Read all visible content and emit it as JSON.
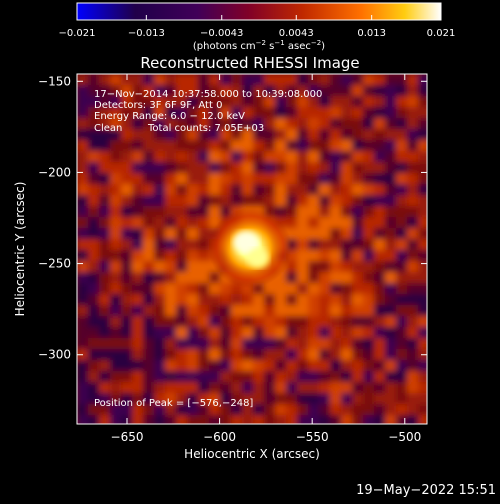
{
  "chart_data": {
    "type": "heatmap",
    "title": "Reconstructed RHESSI Image",
    "xlabel": "Heliocentric X (arcsec)",
    "ylabel": "Heliocentric Y (arcsec)",
    "xlim": [
      -677,
      -488
    ],
    "ylim": [
      -338,
      -146
    ],
    "x_ticks": [
      -650,
      -600,
      -550,
      -500
    ],
    "x_tick_labels": [
      "−650",
      "−600",
      "−550",
      "−500"
    ],
    "y_ticks": [
      -150,
      -200,
      -250,
      -300
    ],
    "y_tick_labels": [
      "−150",
      "−200",
      "−250",
      "−300"
    ],
    "colorbar": {
      "range": [
        -0.021,
        0.021
      ],
      "ticks": [
        -0.021,
        -0.013,
        -0.0043,
        0.0043,
        0.013,
        0.021
      ],
      "tick_labels": [
        "−0.021",
        "−0.013",
        "−0.0043",
        "0.0043",
        "0.013",
        "0.021"
      ],
      "units_text": "(photons cm",
      "units_sup1": "−2",
      "units_mid": " s",
      "units_sup2": "−1",
      "units_tail": " asec",
      "units_sup3": "−2",
      "units_end": ")",
      "colors": [
        "#0000ff",
        "#1a0033",
        "#3a0050",
        "#7a0020",
        "#c02000",
        "#ff6000",
        "#ffc000",
        "#ffffff"
      ]
    },
    "peak": {
      "x": -576,
      "y": -248,
      "value": 0.021
    },
    "annotations": {
      "time_range": "17−Nov−2014 10:37:58.000 to 10:39:08.000",
      "detectors": "Detectors: 3F 6F 9F, Att 0",
      "energy": "Energy Range: 6.0 − 12.0 keV",
      "method": "Clean",
      "counts": "Total counts: 7.05E+03",
      "peak_label": "Position of Peak = [−576,−248]"
    },
    "grid": false
  },
  "footer": {
    "date": "19−May−2022 15:51"
  }
}
